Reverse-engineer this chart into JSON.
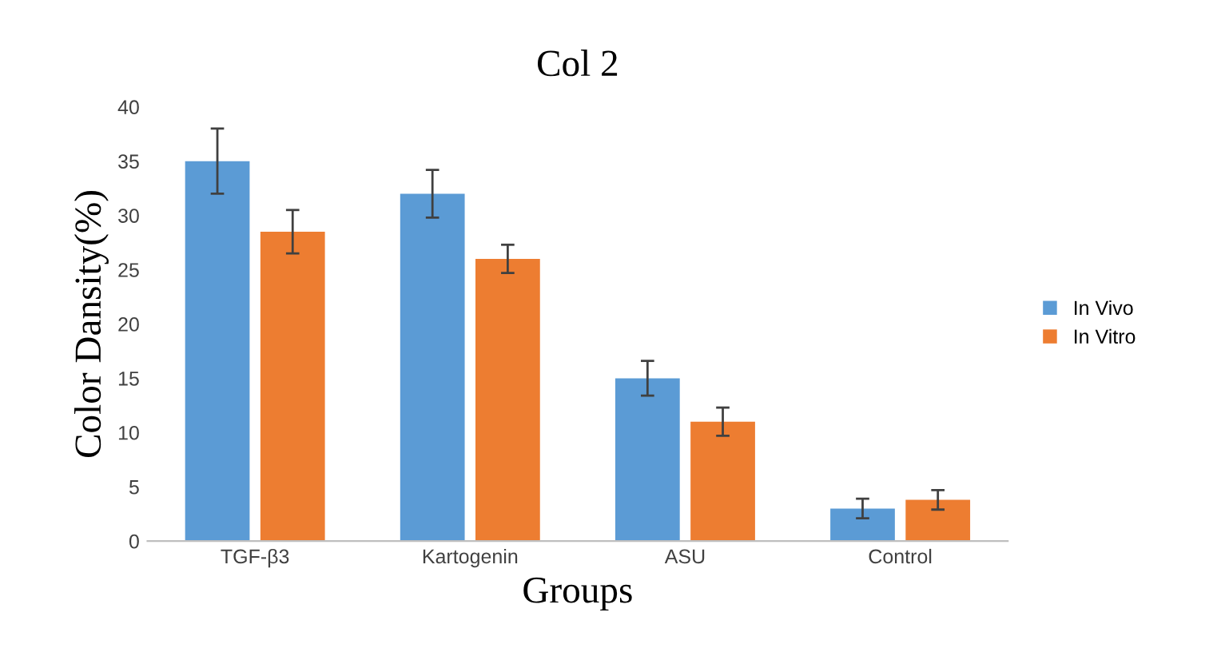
{
  "chart_data": {
    "type": "bar",
    "title": "Col 2",
    "xlabel": "Groups",
    "ylabel": "Color Dansity(%)",
    "categories": [
      "TGF-β3",
      "Kartogenin",
      "ASU",
      "Control"
    ],
    "series": [
      {
        "name": "In Vivo",
        "color": "#5b9bd5",
        "values": [
          35,
          32,
          15,
          3
        ],
        "errors": [
          3,
          2.2,
          1.6,
          0.9
        ]
      },
      {
        "name": "In Vitro",
        "color": "#ed7d31",
        "values": [
          28.5,
          26,
          11,
          3.8
        ],
        "errors": [
          2,
          1.3,
          1.3,
          0.9
        ]
      }
    ],
    "ylim": [
      0,
      40
    ],
    "yticks": [
      0,
      5,
      10,
      15,
      20,
      25,
      30,
      35,
      40
    ],
    "grid": false,
    "legend": "right"
  }
}
